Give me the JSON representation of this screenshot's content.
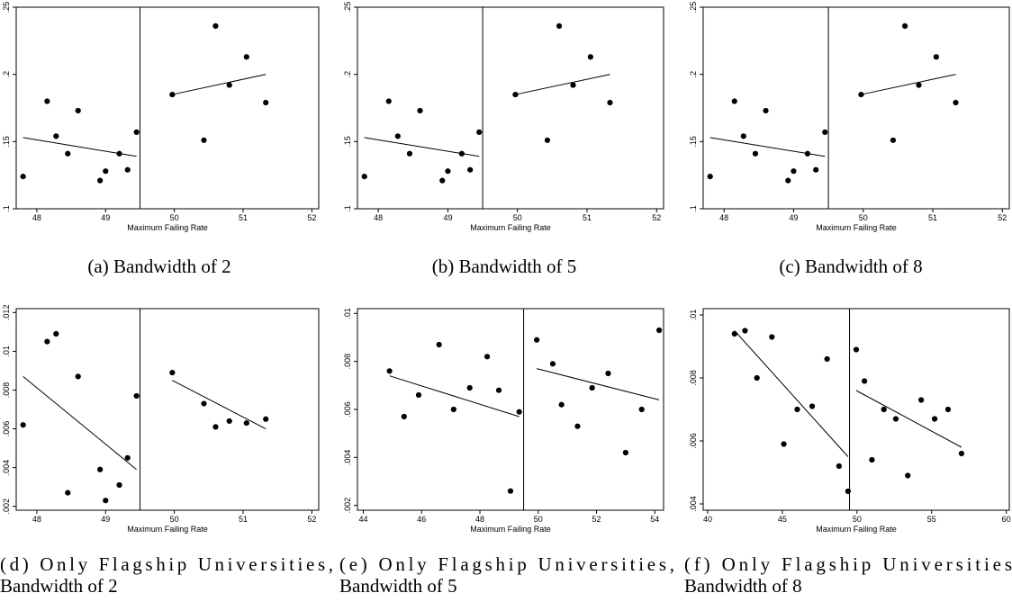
{
  "chart_data": [
    {
      "type": "scatter",
      "caption": [
        "(a) Bandwidth of 2"
      ],
      "xlabel": "Maximum Failing Rate",
      "xlim": [
        47.7,
        52.1
      ],
      "ylim": [
        0.1,
        0.25
      ],
      "xticks": [
        48,
        49,
        50,
        51,
        52
      ],
      "xtick_labels": [
        "48",
        "49",
        "50",
        "51",
        "52"
      ],
      "yticks": [
        0.1,
        0.15,
        0.2,
        0.25
      ],
      "ytick_labels": [
        ".1",
        ".15",
        ".2",
        ".25"
      ],
      "cutoff": 49.5,
      "points": [
        [
          47.8,
          0.124
        ],
        [
          48.15,
          0.18
        ],
        [
          48.28,
          0.154
        ],
        [
          48.45,
          0.141
        ],
        [
          48.6,
          0.173
        ],
        [
          48.92,
          0.121
        ],
        [
          49.0,
          0.128
        ],
        [
          49.2,
          0.141
        ],
        [
          49.32,
          0.129
        ],
        [
          49.45,
          0.157
        ],
        [
          49.97,
          0.185
        ],
        [
          50.43,
          0.151
        ],
        [
          50.6,
          0.236
        ],
        [
          50.8,
          0.192
        ],
        [
          51.05,
          0.213
        ],
        [
          51.33,
          0.179
        ]
      ],
      "fit_lines": [
        {
          "x": [
            47.8,
            49.45
          ],
          "y": [
            0.153,
            0.139
          ]
        },
        {
          "x": [
            49.97,
            51.33
          ],
          "y": [
            0.185,
            0.2
          ]
        }
      ]
    },
    {
      "type": "scatter",
      "caption": [
        "(b) Bandwidth of 5"
      ],
      "xlabel": "Maximum Failing Rate",
      "xlim": [
        47.7,
        52.1
      ],
      "ylim": [
        0.1,
        0.25
      ],
      "xticks": [
        48,
        49,
        50,
        51,
        52
      ],
      "xtick_labels": [
        "48",
        "49",
        "50",
        "51",
        "52"
      ],
      "yticks": [
        0.1,
        0.15,
        0.2,
        0.25
      ],
      "ytick_labels": [
        ".1",
        ".15",
        ".2",
        ".25"
      ],
      "cutoff": 49.5,
      "points": [
        [
          47.8,
          0.124
        ],
        [
          48.15,
          0.18
        ],
        [
          48.28,
          0.154
        ],
        [
          48.45,
          0.141
        ],
        [
          48.6,
          0.173
        ],
        [
          48.92,
          0.121
        ],
        [
          49.0,
          0.128
        ],
        [
          49.2,
          0.141
        ],
        [
          49.32,
          0.129
        ],
        [
          49.45,
          0.157
        ],
        [
          49.97,
          0.185
        ],
        [
          50.43,
          0.151
        ],
        [
          50.6,
          0.236
        ],
        [
          50.8,
          0.192
        ],
        [
          51.05,
          0.213
        ],
        [
          51.33,
          0.179
        ]
      ],
      "fit_lines": [
        {
          "x": [
            47.8,
            49.45
          ],
          "y": [
            0.153,
            0.139
          ]
        },
        {
          "x": [
            49.97,
            51.33
          ],
          "y": [
            0.185,
            0.2
          ]
        }
      ]
    },
    {
      "type": "scatter",
      "caption": [
        "(c) Bandwidth of 8"
      ],
      "xlabel": "Maximum Failing Rate",
      "xlim": [
        47.7,
        52.1
      ],
      "ylim": [
        0.1,
        0.25
      ],
      "xticks": [
        48,
        49,
        50,
        51,
        52
      ],
      "xtick_labels": [
        "48",
        "49",
        "50",
        "51",
        "52"
      ],
      "yticks": [
        0.1,
        0.15,
        0.2,
        0.25
      ],
      "ytick_labels": [
        ".1",
        ".15",
        ".2",
        ".25"
      ],
      "cutoff": 49.5,
      "points": [
        [
          47.8,
          0.124
        ],
        [
          48.15,
          0.18
        ],
        [
          48.28,
          0.154
        ],
        [
          48.45,
          0.141
        ],
        [
          48.6,
          0.173
        ],
        [
          48.92,
          0.121
        ],
        [
          49.0,
          0.128
        ],
        [
          49.2,
          0.141
        ],
        [
          49.32,
          0.129
        ],
        [
          49.45,
          0.157
        ],
        [
          49.97,
          0.185
        ],
        [
          50.43,
          0.151
        ],
        [
          50.6,
          0.236
        ],
        [
          50.8,
          0.192
        ],
        [
          51.05,
          0.213
        ],
        [
          51.33,
          0.179
        ]
      ],
      "fit_lines": [
        {
          "x": [
            47.8,
            49.45
          ],
          "y": [
            0.153,
            0.139
          ]
        },
        {
          "x": [
            49.97,
            51.33
          ],
          "y": [
            0.185,
            0.2
          ]
        }
      ]
    },
    {
      "type": "scatter",
      "caption": [
        "(d)  Only  Flagship  Universities,",
        "Bandwidth of 2"
      ],
      "xlabel": "Maximum Failing Rate",
      "xlim": [
        47.7,
        52.1
      ],
      "ylim": [
        0.0018,
        0.0122
      ],
      "xticks": [
        48,
        49,
        50,
        51,
        52
      ],
      "xtick_labels": [
        "48",
        "49",
        "50",
        "51",
        "52"
      ],
      "yticks": [
        0.002,
        0.004,
        0.006,
        0.008,
        0.01,
        0.012
      ],
      "ytick_labels": [
        ".002",
        ".004",
        ".006",
        ".008",
        ".01",
        ".012"
      ],
      "cutoff": 49.5,
      "points": [
        [
          47.8,
          0.0062
        ],
        [
          48.15,
          0.0105
        ],
        [
          48.28,
          0.0109
        ],
        [
          48.45,
          0.0027
        ],
        [
          48.6,
          0.0087
        ],
        [
          48.92,
          0.0039
        ],
        [
          49.0,
          0.0023
        ],
        [
          49.2,
          0.0031
        ],
        [
          49.32,
          0.0045
        ],
        [
          49.45,
          0.0077
        ],
        [
          49.97,
          0.0089
        ],
        [
          50.43,
          0.0073
        ],
        [
          50.6,
          0.0061
        ],
        [
          50.8,
          0.0064
        ],
        [
          51.05,
          0.0063
        ],
        [
          51.33,
          0.0065
        ]
      ],
      "fit_lines": [
        {
          "x": [
            47.8,
            49.45
          ],
          "y": [
            0.0087,
            0.0039
          ]
        },
        {
          "x": [
            49.97,
            51.33
          ],
          "y": [
            0.0085,
            0.006
          ]
        }
      ]
    },
    {
      "type": "scatter",
      "caption": [
        "(e)  Only  Flagship  Universities,",
        "Bandwidth of 5"
      ],
      "xlabel": "Maximum Failing Rate",
      "xlim": [
        43.8,
        54.3
      ],
      "ylim": [
        0.0018,
        0.0102
      ],
      "xticks": [
        44,
        46,
        48,
        50,
        52,
        54
      ],
      "xtick_labels": [
        "44",
        "46",
        "48",
        "50",
        "52",
        "54"
      ],
      "yticks": [
        0.002,
        0.004,
        0.006,
        0.008,
        0.01
      ],
      "ytick_labels": [
        ".002",
        ".004",
        ".006",
        ".008",
        ".01"
      ],
      "cutoff": 49.5,
      "points": [
        [
          44.9,
          0.0076
        ],
        [
          45.4,
          0.0057
        ],
        [
          45.9,
          0.0066
        ],
        [
          46.6,
          0.0087
        ],
        [
          47.1,
          0.006
        ],
        [
          47.65,
          0.0069
        ],
        [
          48.25,
          0.0082
        ],
        [
          48.65,
          0.0068
        ],
        [
          49.05,
          0.0026
        ],
        [
          49.35,
          0.0059
        ],
        [
          49.95,
          0.0089
        ],
        [
          50.5,
          0.0079
        ],
        [
          50.8,
          0.0062
        ],
        [
          51.85,
          0.0069
        ],
        [
          51.35,
          0.0053
        ],
        [
          52.4,
          0.0075
        ],
        [
          53.0,
          0.0042
        ],
        [
          53.55,
          0.006
        ],
        [
          54.15,
          0.0093
        ]
      ],
      "fit_lines": [
        {
          "x": [
            44.9,
            49.35
          ],
          "y": [
            0.0074,
            0.0057
          ]
        },
        {
          "x": [
            49.95,
            54.15
          ],
          "y": [
            0.0077,
            0.0064
          ]
        }
      ]
    },
    {
      "type": "scatter",
      "caption": [
        "(f)  Only  Flagship  Universities",
        "Bandwidth of 8"
      ],
      "xlabel": "Maximum Failing Rate",
      "xlim": [
        39.7,
        60.2
      ],
      "ylim": [
        0.0038,
        0.0102
      ],
      "xticks": [
        40,
        45,
        50,
        55,
        60
      ],
      "xtick_labels": [
        "40",
        "45",
        "50",
        "55",
        "60"
      ],
      "yticks": [
        0.004,
        0.006,
        0.008,
        0.01
      ],
      "ytick_labels": [
        ".004",
        ".006",
        ".008",
        ".01"
      ],
      "cutoff": 49.5,
      "points": [
        [
          41.8,
          0.0094
        ],
        [
          42.5,
          0.0095
        ],
        [
          43.3,
          0.008
        ],
        [
          44.3,
          0.0093
        ],
        [
          45.1,
          0.0059
        ],
        [
          46.0,
          0.007
        ],
        [
          47.0,
          0.0071
        ],
        [
          48.0,
          0.0086
        ],
        [
          48.8,
          0.0052
        ],
        [
          49.4,
          0.0044
        ],
        [
          49.95,
          0.0089
        ],
        [
          50.5,
          0.0079
        ],
        [
          51.0,
          0.0054
        ],
        [
          51.8,
          0.007
        ],
        [
          52.6,
          0.0067
        ],
        [
          53.4,
          0.0049
        ],
        [
          54.3,
          0.0073
        ],
        [
          55.2,
          0.0067
        ],
        [
          56.1,
          0.007
        ],
        [
          57.0,
          0.0056
        ]
      ],
      "fit_lines": [
        {
          "x": [
            41.8,
            49.4
          ],
          "y": [
            0.0095,
            0.0055
          ]
        },
        {
          "x": [
            49.95,
            57.0
          ],
          "y": [
            0.0076,
            0.0058
          ]
        }
      ]
    }
  ]
}
